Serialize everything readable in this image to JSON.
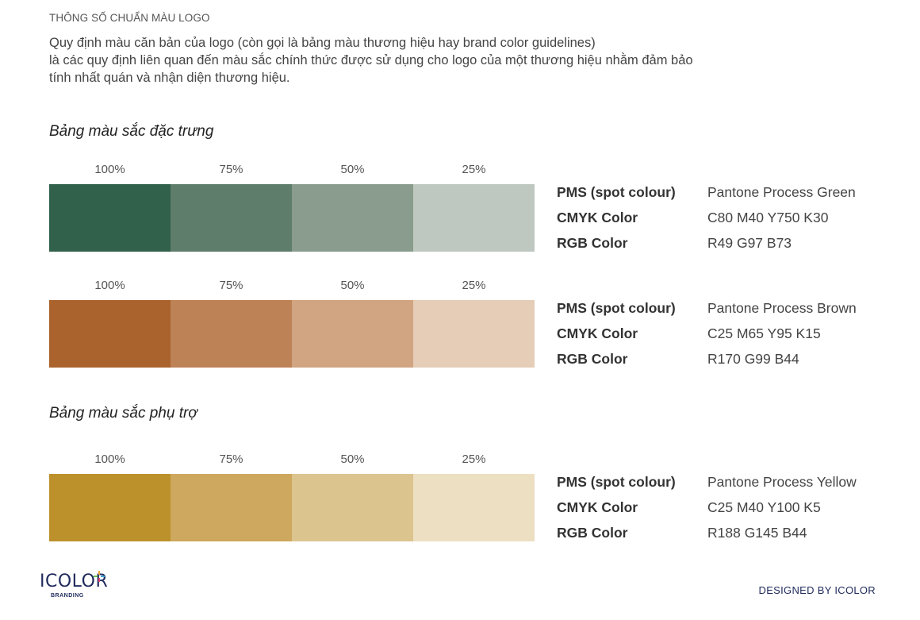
{
  "header": {
    "eyebrow": "THÔNG SỐ CHUẨN MÀU LOGO",
    "intro_lines": [
      "Quy định màu căn bản của logo (còn gọi là bảng màu thương hiệu hay brand color guidelines)",
      "là các quy định liên quan đến màu sắc chính thức được sử dụng cho logo của một thương hiệu nhằm đảm bảo",
      "tính nhất quán và nhận diện thương hiệu."
    ]
  },
  "sections": {
    "primary_title": "Bảng màu sắc đặc trưng",
    "secondary_title": "Bảng màu sắc phụ trợ"
  },
  "palettes": [
    {
      "name": "green",
      "percentages": [
        "100%",
        "75%",
        "50%",
        "25%"
      ],
      "swatch_colors": [
        "#31614a",
        "#5f7d6b",
        "#8a9c8d",
        "#bec8c0"
      ],
      "specs": [
        {
          "label": "PMS (spot colour)",
          "value": "Pantone Process Green"
        },
        {
          "label": "CMYK Color",
          "value": "C80 M40 Y750 K30"
        },
        {
          "label": "RGB Color",
          "value": "R49 G97 B73"
        }
      ]
    },
    {
      "name": "brown",
      "percentages": [
        "100%",
        "75%",
        "50%",
        "25%"
      ],
      "swatch_colors": [
        "#aa632c",
        "#be8257",
        "#d1a482",
        "#e5cdb7"
      ],
      "specs": [
        {
          "label": "PMS (spot colour)",
          "value": "Pantone Process Brown"
        },
        {
          "label": "CMYK Color",
          "value": "C25 M65 Y95 K15"
        },
        {
          "label": "RGB Color",
          "value": "R170 G99 B44"
        }
      ]
    },
    {
      "name": "yellow",
      "percentages": [
        "100%",
        "75%",
        "50%",
        "25%"
      ],
      "swatch_colors": [
        "#bc912c",
        "#cda85e",
        "#dcc48f",
        "#ecdfc2"
      ],
      "specs": [
        {
          "label": "PMS (spot colour)",
          "value": "Pantone Process Yellow"
        },
        {
          "label": "CMYK Color",
          "value": "C25 M40 Y100 K5"
        },
        {
          "label": "RGB Color",
          "value": "R188 G145 B44"
        }
      ]
    }
  ],
  "footer": {
    "logo_text": "ICOLOR",
    "logo_sub": "BRANDING",
    "credit": "DESIGNED BY ICOLOR"
  }
}
